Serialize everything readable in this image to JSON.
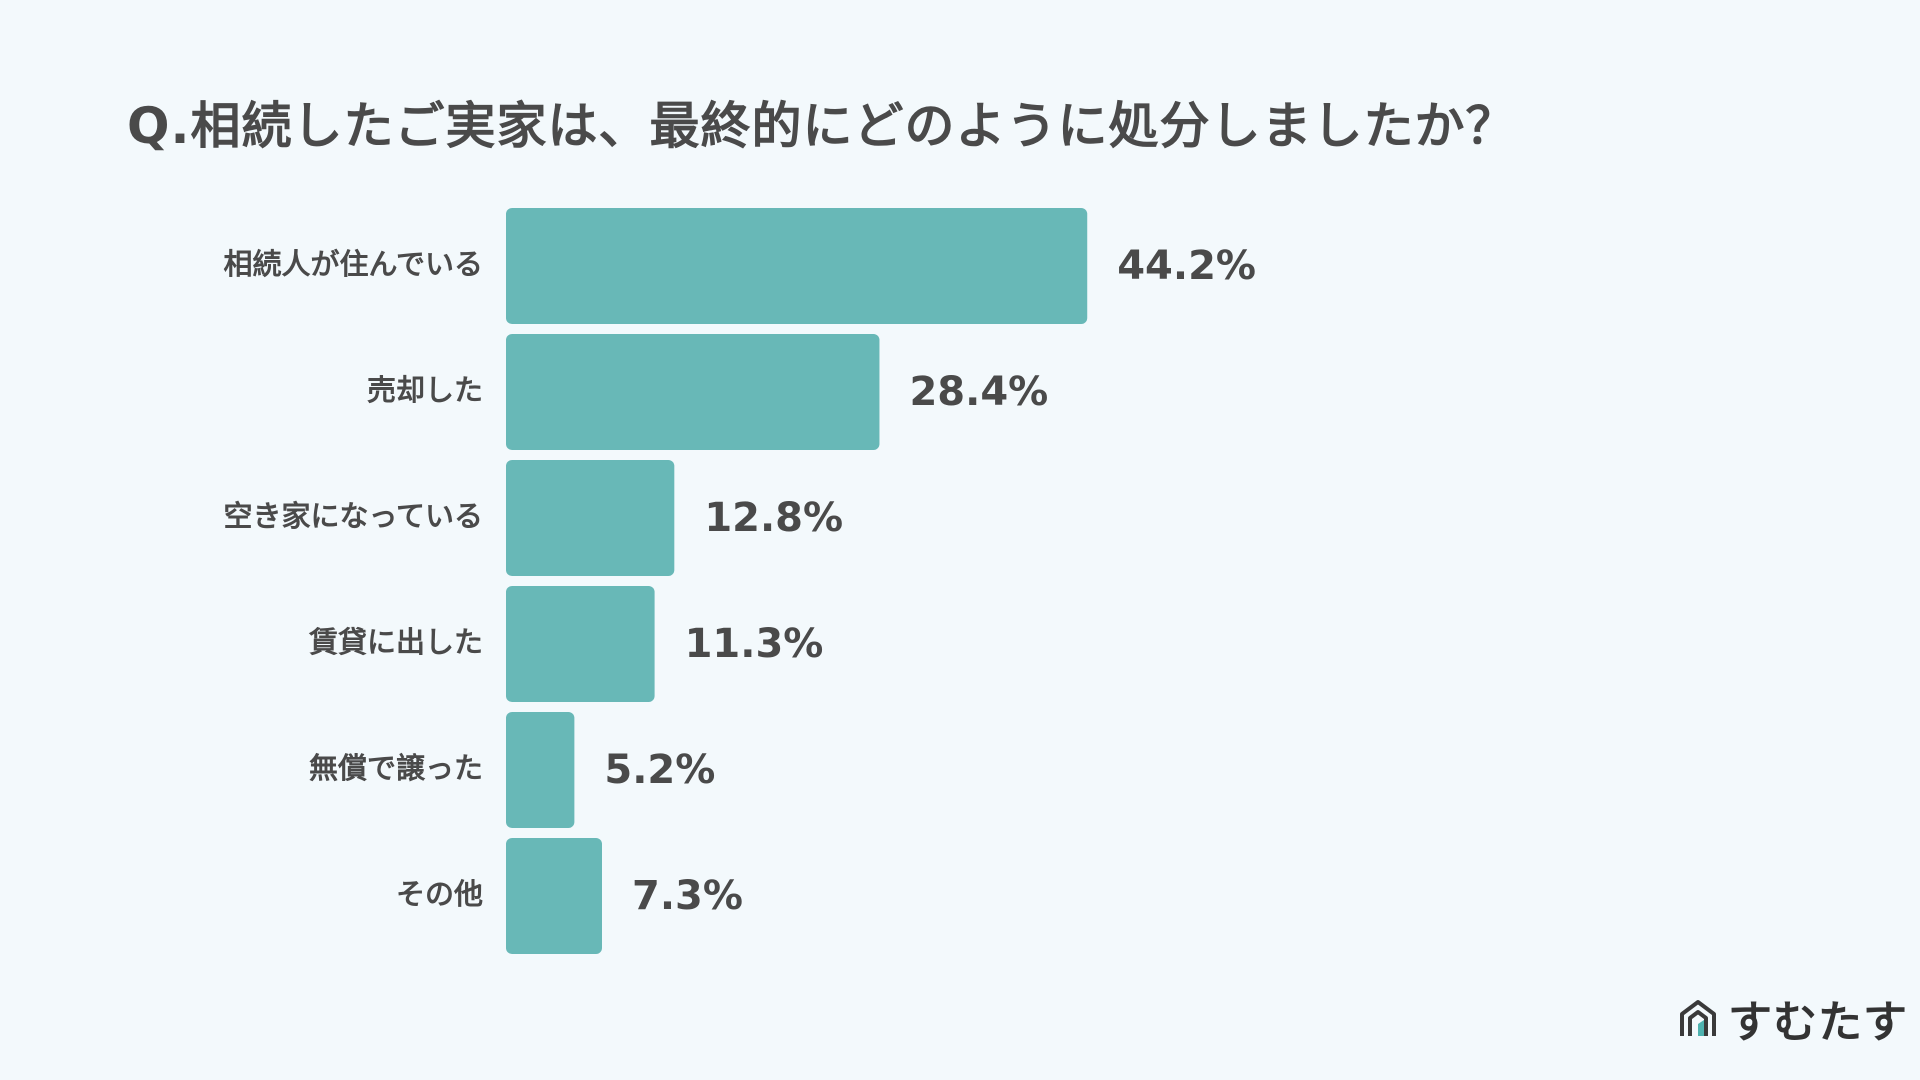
{
  "title": "Q.相続したご実家は、最終的にどのように処分しましたか？",
  "logo": {
    "text": "すむたす",
    "icon": "house-icon"
  },
  "colors": {
    "bar": "#68b8b7",
    "text": "#4a4a4a",
    "background": "#f3f9fc"
  },
  "chart_data": {
    "type": "bar",
    "orientation": "horizontal",
    "categories": [
      "相続人が住んでいる",
      "売却した",
      "空き家になっている",
      "賃貸に出した",
      "無償で譲った",
      "その他"
    ],
    "values": [
      44.2,
      28.4,
      12.8,
      11.3,
      5.2,
      7.3
    ],
    "value_labels": [
      "44.2%",
      "28.4%",
      "12.8%",
      "11.3%",
      "5.2%",
      "7.3%"
    ],
    "unit": "%",
    "title": "Q.相続したご実家は、最終的にどのように処分しましたか？",
    "grid": false,
    "legend": "none"
  }
}
